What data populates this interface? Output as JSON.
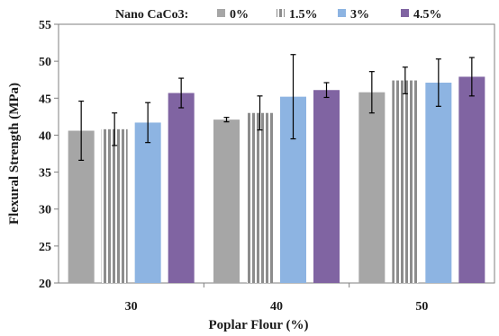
{
  "chart_data": {
    "type": "bar",
    "title": "",
    "xlabel": "Poplar Flour (%)",
    "ylabel": "Flexural Strength (MPa)",
    "ylim": [
      20,
      55
    ],
    "yticks": [
      20,
      25,
      30,
      35,
      40,
      45,
      50,
      55
    ],
    "grid": false,
    "legend": {
      "title": "Nano CaCo3:",
      "placement": "top"
    },
    "categories": [
      "30",
      "40",
      "50"
    ],
    "series": [
      {
        "name": "0%",
        "color": "#a6a6a6",
        "pattern": "solid",
        "values": [
          40.6,
          42.1,
          45.8
        ],
        "errors": [
          4.0,
          0.3,
          2.8
        ]
      },
      {
        "name": "1.5%",
        "color": "#a6a6a6",
        "pattern": "stripes",
        "values": [
          40.8,
          43.0,
          47.4
        ],
        "errors": [
          2.2,
          2.3,
          1.8
        ]
      },
      {
        "name": "3%",
        "color": "#8db4e2",
        "pattern": "solid",
        "values": [
          41.7,
          45.2,
          47.1
        ],
        "errors": [
          2.7,
          5.7,
          3.2
        ]
      },
      {
        "name": "4.5%",
        "color": "#8064a2",
        "pattern": "solid",
        "values": [
          45.7,
          46.1,
          47.9
        ],
        "errors": [
          2.0,
          1.0,
          2.6
        ]
      }
    ]
  }
}
